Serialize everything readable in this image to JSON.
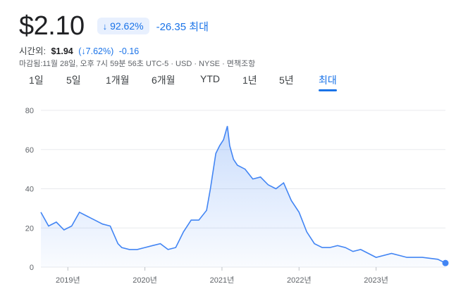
{
  "quote": {
    "price": "$2.10",
    "change_pct": "92.62%",
    "change_abs": "-26.35",
    "range_label": "최대",
    "accent": "#1a73e8"
  },
  "after_hours": {
    "label": "시간외:",
    "price": "$1.94",
    "change_pct": "(↓7.62%)",
    "change_abs": "-0.16"
  },
  "meta_line": "마감됨:11월 28일, 오후 7시 59분 56초 UTC-5 · USD · NYSE · 면책조항",
  "tabs": [
    "1일",
    "5일",
    "1개월",
    "6개월",
    "YTD",
    "1년",
    "5년",
    "최대"
  ],
  "active_tab": "최대",
  "chart_data": {
    "type": "area",
    "title": "",
    "xlabel": "",
    "ylabel": "",
    "ylim": [
      0,
      80
    ],
    "yticks": [
      "0",
      "20",
      "40",
      "60",
      "80"
    ],
    "xticks": [
      "2019년",
      "2020년",
      "2021년",
      "2022년",
      "2023년"
    ],
    "grid": true,
    "line_color": "#4285f4",
    "series": [
      {
        "x": [
          2018.65,
          2018.75,
          2018.85,
          2018.95,
          2019.05,
          2019.15,
          2019.25,
          2019.35,
          2019.45,
          2019.55,
          2019.65,
          2019.7,
          2019.8,
          2019.9,
          2020.0,
          2020.1,
          2020.2,
          2020.3,
          2020.4,
          2020.5,
          2020.6,
          2020.7,
          2020.8,
          2020.85,
          2020.92,
          2020.97,
          2021.02,
          2021.07,
          2021.1,
          2021.15,
          2021.2,
          2021.3,
          2021.4,
          2021.5,
          2021.6,
          2021.7,
          2021.8,
          2021.9,
          2022.0,
          2022.1,
          2022.2,
          2022.3,
          2022.4,
          2022.5,
          2022.6,
          2022.7,
          2022.8,
          2022.9,
          2023.0,
          2023.2,
          2023.4,
          2023.6,
          2023.8,
          2023.9
        ],
        "y": [
          28,
          21,
          23,
          19,
          21,
          28,
          26,
          24,
          22,
          21,
          12,
          10,
          9,
          9,
          10,
          11,
          12,
          9,
          10,
          18,
          24,
          24,
          29,
          40,
          58,
          62,
          65,
          72,
          62,
          55,
          52,
          50,
          45,
          46,
          42,
          40,
          43,
          34,
          28,
          18,
          12,
          10,
          10,
          11,
          10,
          8,
          9,
          7,
          5,
          7,
          5,
          5,
          4,
          2.1
        ]
      }
    ]
  }
}
